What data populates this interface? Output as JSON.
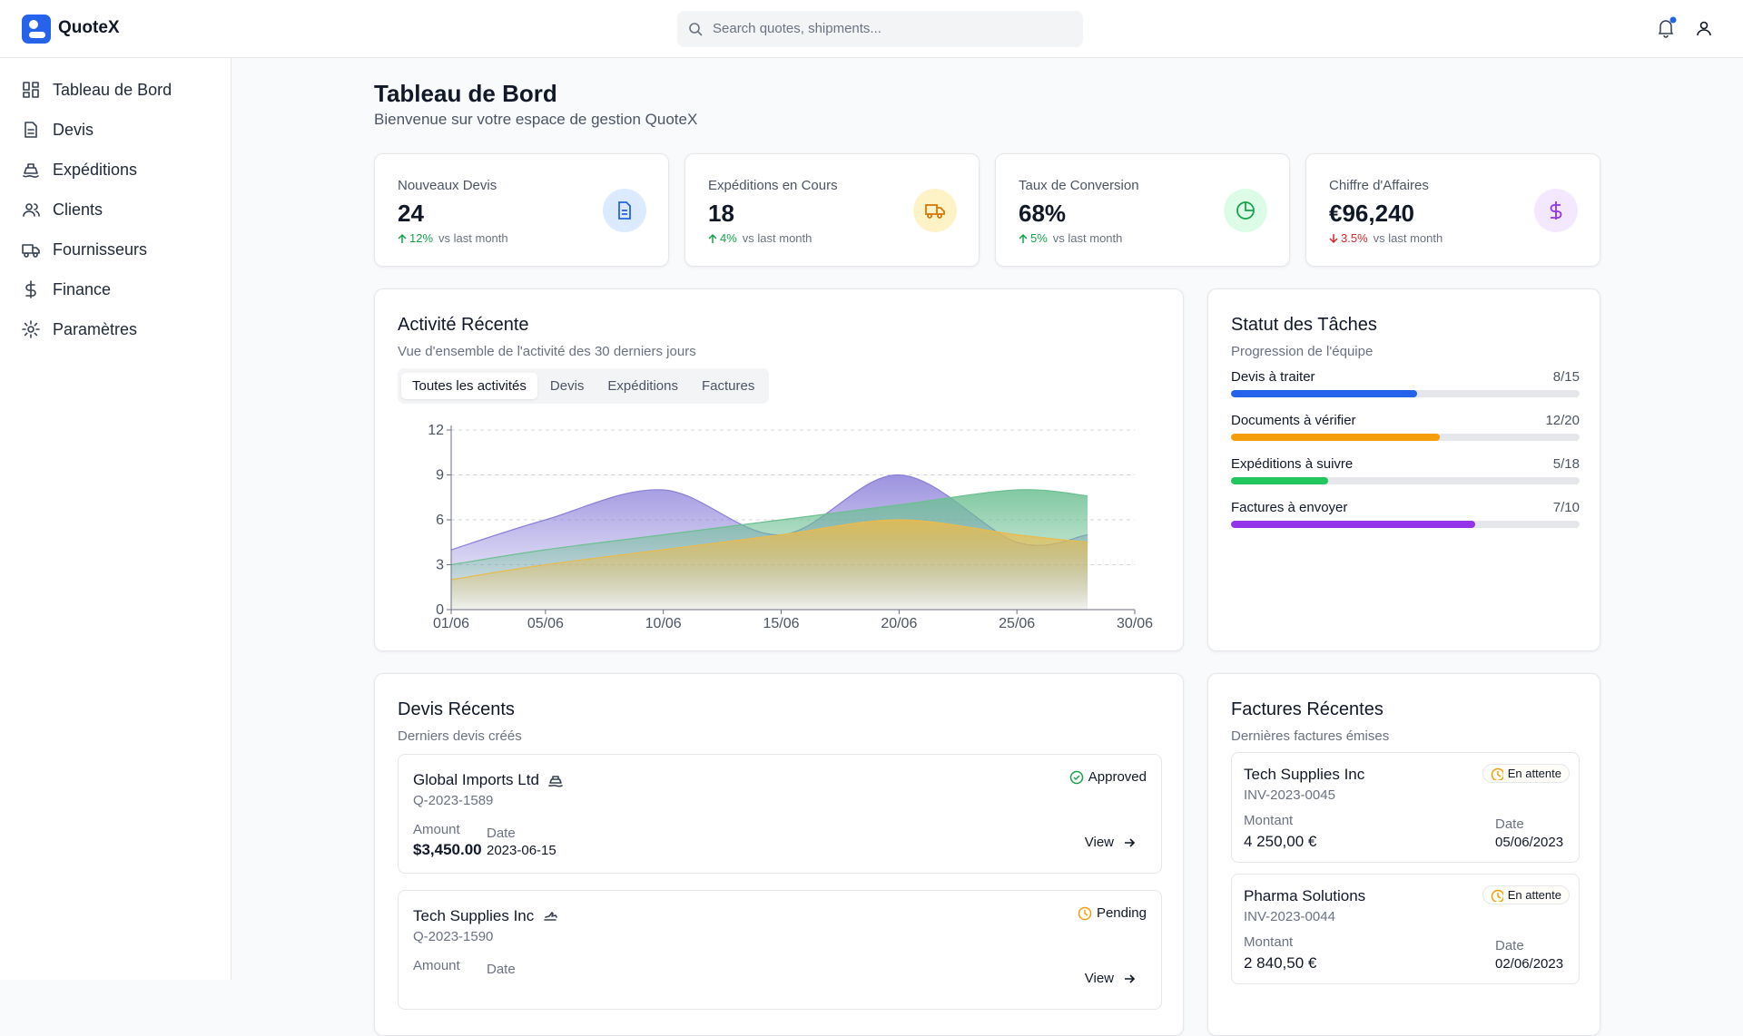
{
  "header": {
    "brand": "QuoteX",
    "search_placeholder": "Search quotes, shipments..."
  },
  "nav": [
    "Tableau de Bord",
    "Devis",
    "Expéditions",
    "Clients",
    "Fournisseurs",
    "Finance",
    "Paramètres"
  ],
  "page": {
    "title": "Tableau de Bord",
    "subtitle": "Bienvenue sur votre espace de gestion QuoteX"
  },
  "stats": [
    {
      "label": "Nouveaux Devis",
      "value": "24",
      "change": "12%",
      "trend": "up",
      "note": "vs last month",
      "color": "#2563eb",
      "bg": "#dbeafe"
    },
    {
      "label": "Expéditions en Cours",
      "value": "18",
      "change": "4%",
      "trend": "up",
      "note": "vs last month",
      "color": "#d97706",
      "bg": "#fef3c7"
    },
    {
      "label": "Taux de Conversion",
      "value": "68%",
      "change": "5%",
      "trend": "up",
      "note": "vs last month",
      "color": "#16a34a",
      "bg": "#dcfce7"
    },
    {
      "label": "Chiffre d'Affaires",
      "value": "€96,240",
      "change": "3.5%",
      "trend": "down",
      "note": "vs last month",
      "color": "#9333ea",
      "bg": "#f3e8ff"
    }
  ],
  "activity": {
    "title": "Activité Récente",
    "subtitle": "Vue d'ensemble de l'activité des 30 derniers jours",
    "tabs": [
      "Toutes les activités",
      "Devis",
      "Expéditions",
      "Factures"
    ],
    "chart_data": {
      "type": "area",
      "x": [
        1,
        5,
        10,
        15,
        20,
        25,
        28
      ],
      "series": [
        {
          "color": "#8b80d9",
          "values": [
            4,
            6,
            8,
            5,
            9,
            4.5,
            5
          ]
        },
        {
          "color": "#6cbf92",
          "values": [
            3,
            4,
            5,
            6,
            7,
            8,
            7.6
          ]
        },
        {
          "color": "#e9bb4d",
          "values": [
            2,
            3,
            4,
            5,
            6,
            5,
            4.5
          ]
        }
      ],
      "xlim": [
        1,
        30
      ],
      "xticks": [
        {
          "value": 1,
          "label": "01/06"
        },
        {
          "value": 5,
          "label": "05/06"
        },
        {
          "value": 10,
          "label": "10/06"
        },
        {
          "value": 15,
          "label": "15/06"
        },
        {
          "value": 20,
          "label": "20/06"
        },
        {
          "value": 25,
          "label": "25/06"
        },
        {
          "value": 30,
          "label": "30/06"
        }
      ],
      "ylim": [
        0,
        12
      ],
      "yticks": [
        0,
        3,
        6,
        9,
        12
      ],
      "grid": true
    }
  },
  "tasks": {
    "title": "Statut des Tâches",
    "subtitle": "Progression de l'équipe",
    "items": [
      {
        "label": "Devis à traiter",
        "count": "8/15",
        "done": 8,
        "total": 15,
        "color": "#2563eb"
      },
      {
        "label": "Documents à vérifier",
        "count": "12/20",
        "done": 12,
        "total": 20,
        "color": "#f59e0b"
      },
      {
        "label": "Expéditions à suivre",
        "count": "5/18",
        "done": 5,
        "total": 18,
        "color": "#22c55e"
      },
      {
        "label": "Factures à envoyer",
        "count": "7/10",
        "done": 7,
        "total": 10,
        "color": "#9333ea"
      }
    ]
  },
  "quotes": {
    "title": "Devis Récents",
    "subtitle": "Derniers devis créés",
    "items": [
      {
        "client": "Global Imports Ltd",
        "id": "Q-2023-1589",
        "status": "Approved",
        "amount_label": "Amount",
        "amount": "$3,450.00",
        "date_label": "Date",
        "date": "2023-06-15",
        "action": "View"
      },
      {
        "client": "Tech Supplies Inc",
        "id": "Q-2023-1590",
        "status": "Pending",
        "amount_label": "Amount",
        "date_label": "Date",
        "action": "View"
      }
    ]
  },
  "invoices": {
    "title": "Factures Récentes",
    "subtitle": "Dernières factures émises",
    "items": [
      {
        "client": "Tech Supplies Inc",
        "id": "INV-2023-0045",
        "status": "En attente",
        "amount_label": "Montant",
        "amount": "4 250,00 €",
        "date_label": "Date",
        "date": "05/06/2023"
      },
      {
        "client": "Pharma Solutions",
        "id": "INV-2023-0044",
        "status": "En attente",
        "amount_label": "Montant",
        "amount": "2 840,50 €",
        "date_label": "Date",
        "date": "02/06/2023"
      }
    ]
  }
}
